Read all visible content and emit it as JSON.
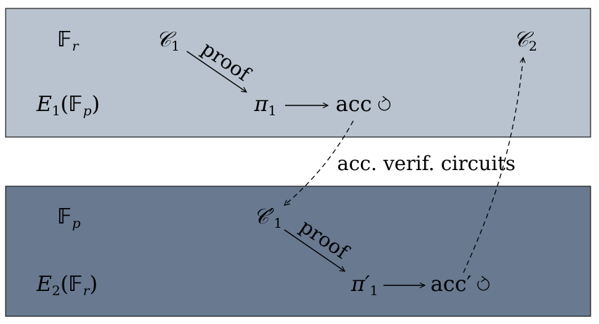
{
  "colors": {
    "top_band": "#b8c3cf",
    "bottom_band": "#687990",
    "band_border": "#1a1a1a",
    "ink": "#000000"
  },
  "top_band": {
    "field_symbol": "𝔽",
    "field_sub": "r",
    "curve_label": "E",
    "curve_index": "1",
    "curve_field": "𝔽",
    "curve_field_sub": "p",
    "circuit": "𝒞",
    "circuit_sub": "1",
    "proof_label": "proof",
    "pi": "π",
    "pi_sub": "1",
    "acc_label": "acc",
    "circuit_two": "𝒞",
    "circuit_two_sub": "2"
  },
  "middle": {
    "verifier_label": "acc. verif. circuits"
  },
  "bottom_band": {
    "field_symbol": "𝔽",
    "field_sub": "p",
    "curve_label": "E",
    "curve_index": "2",
    "curve_field": "𝔽",
    "curve_field_sub": "r",
    "circuit": "𝒞′",
    "circuit_sub": "1",
    "proof_label": "proof",
    "pi": "π′",
    "pi_sub": "1",
    "acc_label": "acc′"
  },
  "icons": {
    "loop": "circular-arrow-icon",
    "arrow": "right-arrow-icon"
  }
}
